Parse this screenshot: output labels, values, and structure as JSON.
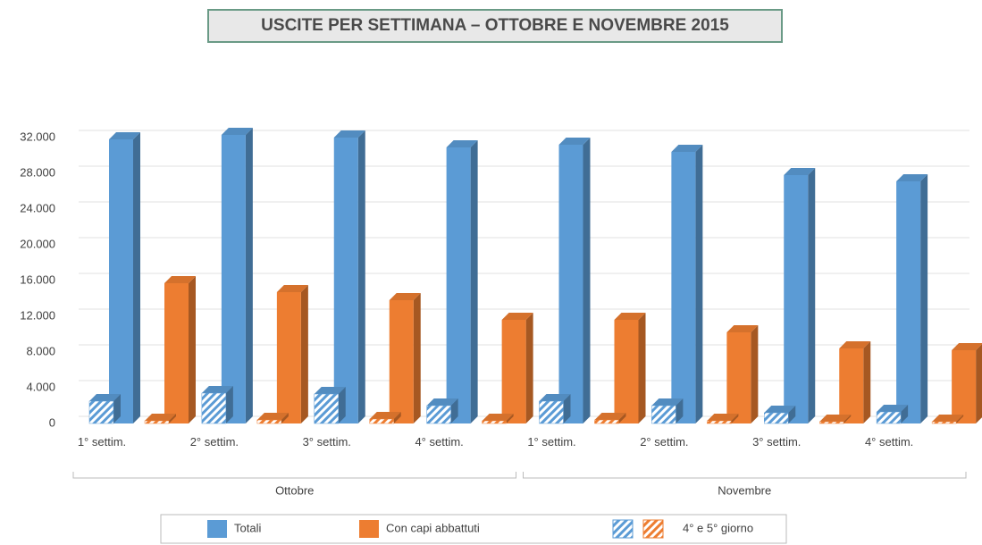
{
  "chart_data": {
    "type": "bar3d",
    "title": "USCITE PER SETTIMANA – OTTOBRE E NOVEMBRE 2015",
    "categories": [
      "1° settim.",
      "2° settim.",
      "3° settim.",
      "4° settim.",
      "1° settim.",
      "2° settim.",
      "3° settim.",
      "4° settim."
    ],
    "groups": [
      "Ottobre",
      "Novembre"
    ],
    "series": [
      {
        "name": "Totali",
        "color": "#5b9bd5",
        "values": [
          31800,
          32300,
          32000,
          30900,
          31200,
          30400,
          27800,
          27100
        ]
      },
      {
        "name": "Con capi abbattuti",
        "color": "#ed7d31",
        "values": [
          15700,
          14700,
          13800,
          11600,
          11600,
          10200,
          8400,
          8200
        ]
      }
    ],
    "hatched": {
      "name": "4° e 5° giorno",
      "series": [
        {
          "color": "#5b9bd5",
          "values": [
            2500,
            3400,
            3300,
            2000,
            2500,
            2000,
            1200,
            1300
          ]
        },
        {
          "color": "#ed7d31",
          "values": [
            300,
            400,
            500,
            300,
            400,
            300,
            200,
            200
          ]
        }
      ]
    },
    "ylim": [
      0,
      34000
    ],
    "yticks": [
      {
        "value": 0,
        "label": "0"
      },
      {
        "value": 4000,
        "label": "4.000"
      },
      {
        "value": 8000,
        "label": "8.000"
      },
      {
        "value": 12000,
        "label": "12.000"
      },
      {
        "value": 16000,
        "label": "16.000"
      },
      {
        "value": 20000,
        "label": "20.000"
      },
      {
        "value": 24000,
        "label": "24.000"
      },
      {
        "value": 28000,
        "label": "28.000"
      },
      {
        "value": 32000,
        "label": "32.000"
      }
    ],
    "grid": true
  }
}
